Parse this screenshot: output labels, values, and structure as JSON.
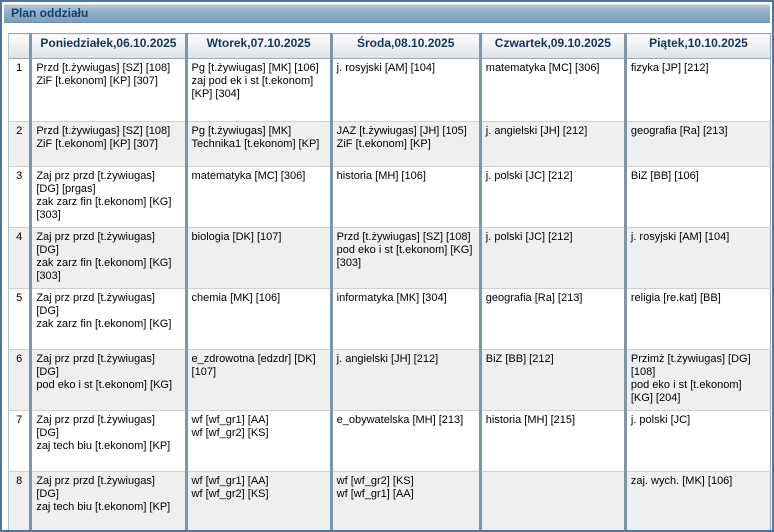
{
  "title_bar": {
    "title": "Plan oddziału"
  },
  "timetable": {
    "corner_header": "",
    "day_headers": [
      "Poniedziałek,06.10.2025",
      "Wtorek,07.10.2025",
      "Środa,08.10.2025",
      "Czwartek,09.10.2025",
      "Piątek,10.10.2025"
    ],
    "rows": [
      {
        "num": "1",
        "days": [
          [
            "Przd [t.żywiugas] [SZ] [108]",
            "ZiF [t.ekonom] [KP] [307]"
          ],
          [
            "Pg [t.żywiugas] [MK] [106]",
            "zaj pod ek i st [t.ekonom] [KP] [304]"
          ],
          [
            "j. rosyjski [AM] [104]"
          ],
          [
            "matematyka [MC] [306]"
          ],
          [
            "fizyka [JP] [212]"
          ]
        ]
      },
      {
        "num": "2",
        "days": [
          [
            "Przd [t.żywiugas] [SZ] [108]",
            "ZiF [t.ekonom] [KP] [307]"
          ],
          [
            "Pg [t.żywiugas] [MK]",
            "Technika1 [t.ekonom] [KP]"
          ],
          [
            "JAZ [t.żywiugas] [JH] [105]",
            "ZiF [t.ekonom] [KP]"
          ],
          [
            "j. angielski [JH] [212]"
          ],
          [
            "geografia [Ra] [213]"
          ]
        ]
      },
      {
        "num": "3",
        "days": [
          [
            "Zaj prz przd [t.żywiugas] [DG] [prgas]",
            "zak zarz fin [t.ekonom] [KG] [303]"
          ],
          [
            "matematyka [MC] [306]"
          ],
          [
            "historia [MH] [106]"
          ],
          [
            "j. polski [JC] [212]"
          ],
          [
            "BiZ [BB] [106]"
          ]
        ]
      },
      {
        "num": "4",
        "days": [
          [
            "Zaj prz przd [t.żywiugas] [DG]",
            "zak zarz fin [t.ekonom] [KG] [303]"
          ],
          [
            "biologia [DK] [107]"
          ],
          [
            "Przd [t.żywiugas] [SZ] [108]",
            "pod eko i st [t.ekonom] [KG] [303]"
          ],
          [
            "j. polski [JC] [212]"
          ],
          [
            "j. rosyjski [AM] [104]"
          ]
        ]
      },
      {
        "num": "5",
        "days": [
          [
            "Zaj prz przd [t.żywiugas] [DG]",
            "zak zarz fin [t.ekonom] [KG]"
          ],
          [
            "chemia [MK] [106]"
          ],
          [
            "informatyka [MK] [304]"
          ],
          [
            "geografia [Ra] [213]"
          ],
          [
            "religia [re.kat] [BB]"
          ]
        ]
      },
      {
        "num": "6",
        "days": [
          [
            "Zaj prz przd [t.żywiugas] [DG]",
            "pod eko i st [t.ekonom] [KG]"
          ],
          [
            "e_zdrowotna [edzdr] [DK] [107]"
          ],
          [
            "j. angielski [JH] [212]"
          ],
          [
            "BiZ [BB] [212]"
          ],
          [
            "Przimż [t.żywiugas] [DG] [108]",
            "pod eko i st [t.ekonom] [KG] [204]"
          ]
        ]
      },
      {
        "num": "7",
        "days": [
          [
            "Zaj prz przd [t.żywiugas] [DG]",
            "zaj tech biu [t.ekonom] [KP]"
          ],
          [
            "wf [wf_gr1] [AA]",
            "wf [wf_gr2] [KS]"
          ],
          [
            "e_obywatelska [MH] [213]"
          ],
          [
            "historia [MH] [215]"
          ],
          [
            "j. polski [JC]"
          ]
        ]
      },
      {
        "num": "8",
        "days": [
          [
            "Zaj prz przd [t.żywiugas] [DG]",
            "zaj tech biu [t.ekonom] [KP]"
          ],
          [
            "wf [wf_gr1] [AA]",
            "wf [wf_gr2] [KS]"
          ],
          [
            "wf [wf_gr2] [KS]",
            "wf [wf_gr1] [AA]"
          ],
          [],
          [
            "zaj. wych. [MK] [106]"
          ]
        ]
      }
    ]
  },
  "colors": {
    "window_border": "#4f75a0",
    "title_bar_top": "#b2c6d9",
    "title_bar_bottom": "#7d9dbc",
    "title_bar_text": "#1c3e6e",
    "header_text": "#14355e",
    "header_gradient_bottom": "#dde2e6",
    "column_separator": "#7e96a9",
    "row_alt_background": "#efefef"
  }
}
